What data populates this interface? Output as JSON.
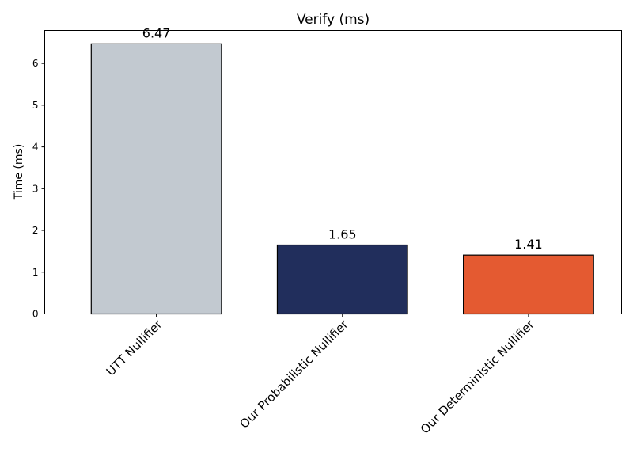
{
  "chart_data": {
    "type": "bar",
    "title": "Verify (ms)",
    "xlabel": "",
    "ylabel": "Time (ms)",
    "categories": [
      "UTT Nullifier",
      "Our Probabilistic Nullifier",
      "Our Deterministic Nullifier"
    ],
    "values": [
      6.47,
      1.65,
      1.41
    ],
    "value_labels": [
      "6.47",
      "1.65",
      "1.41"
    ],
    "colors": [
      "#c2c9d0",
      "#212e5c",
      "#e45a31"
    ],
    "ylim": [
      0,
      6.79
    ],
    "yticks": [
      0,
      1,
      2,
      3,
      4,
      5,
      6
    ],
    "ytick_labels": [
      "0",
      "1",
      "2",
      "3",
      "4",
      "5",
      "6"
    ],
    "grid": false,
    "legend": "none"
  }
}
